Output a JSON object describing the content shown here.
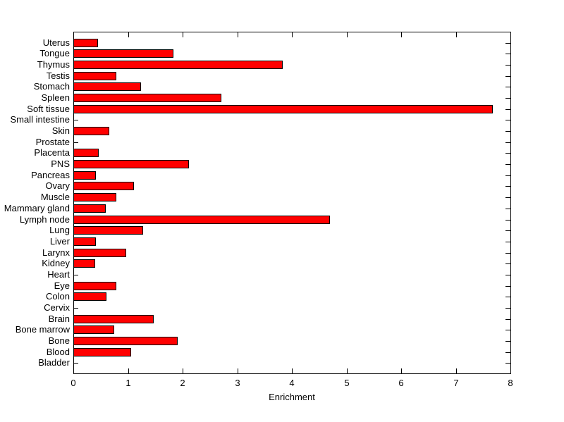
{
  "figure": {
    "background": "#FFFFFF"
  },
  "chart_data": {
    "type": "bar",
    "orientation": "horizontal",
    "title": "",
    "xlabel": "Enrichment",
    "ylabel": "",
    "xlim": [
      0,
      8
    ],
    "xticks": [
      0,
      1,
      2,
      3,
      4,
      5,
      6,
      7,
      8
    ],
    "grid": false,
    "legend": "none",
    "bar_color": "#FF0000",
    "bar_edge_color": "#000000",
    "axis_color": "#000000",
    "categories": [
      "Uterus",
      "Tongue",
      "Thymus",
      "Testis",
      "Stomach",
      "Spleen",
      "Soft tissue",
      "Small intestine",
      "Skin",
      "Prostate",
      "Placenta",
      "PNS",
      "Pancreas",
      "Ovary",
      "Muscle",
      "Mammary gland",
      "Lymph node",
      "Lung",
      "Liver",
      "Larynx",
      "Kidney",
      "Heart",
      "Eye",
      "Colon",
      "Cervix",
      "Brain",
      "Bone marrow",
      "Bone",
      "Blood",
      "Bladder"
    ],
    "values": [
      0.44,
      1.82,
      3.82,
      0.78,
      1.22,
      2.7,
      7.66,
      0,
      0.64,
      0,
      0.45,
      2.1,
      0.4,
      1.1,
      0.78,
      0.58,
      4.68,
      1.27,
      0.4,
      0.96,
      0.39,
      0,
      0.78,
      0.59,
      0,
      1.46,
      0.73,
      1.9,
      1.04,
      0
    ]
  }
}
